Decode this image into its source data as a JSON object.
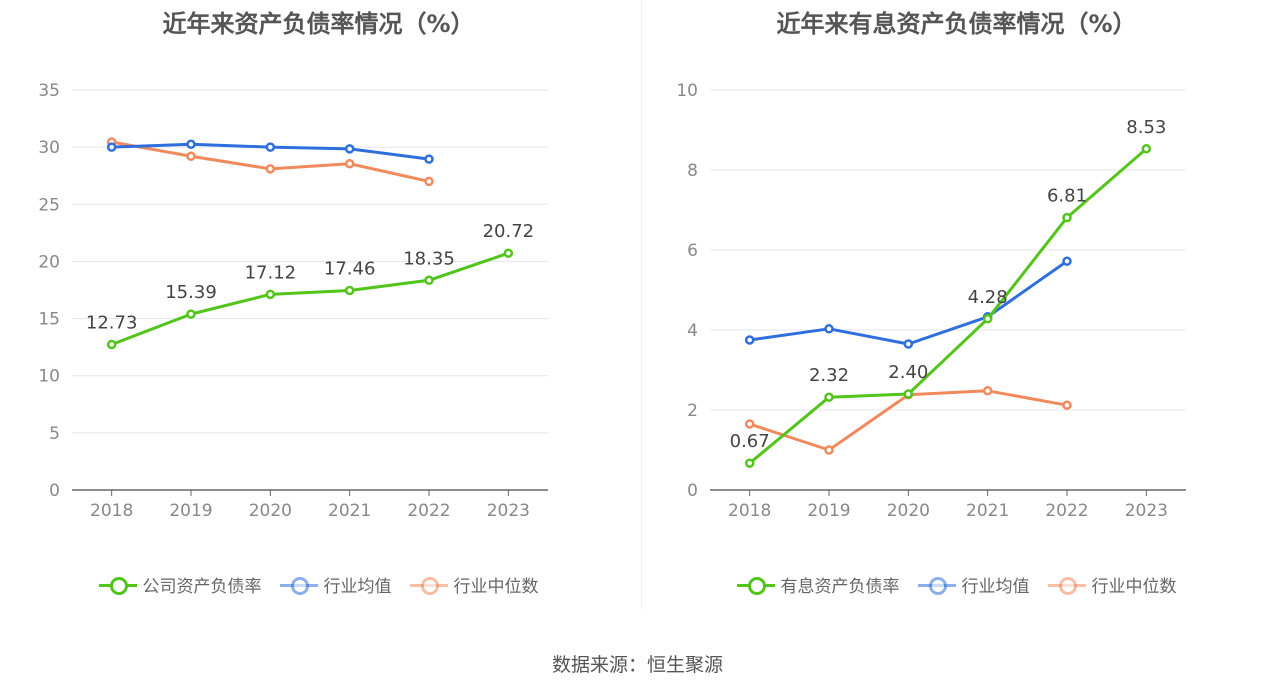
{
  "source_label": "数据来源：恒生聚源",
  "chart_data": [
    {
      "type": "line",
      "title": "近年来资产负债率情况（%）",
      "categories": [
        "2018",
        "2019",
        "2020",
        "2021",
        "2022",
        "2023"
      ],
      "ylim": [
        0,
        35
      ],
      "yticks": [
        0,
        5,
        10,
        15,
        20,
        25,
        30,
        35
      ],
      "grid": true,
      "legend_position": "bottom",
      "series": [
        {
          "name": "公司资产负债率",
          "color": "#52c41a",
          "values": [
            12.73,
            15.39,
            17.12,
            17.46,
            18.35,
            20.72
          ],
          "labels": [
            "12.73",
            "15.39",
            "17.12",
            "17.46",
            "18.35",
            "20.72"
          ]
        },
        {
          "name": "行业均值",
          "color": "#2f6fdd",
          "values": [
            30.0,
            30.25,
            30.0,
            29.85,
            28.95,
            null
          ]
        },
        {
          "name": "行业中位数",
          "color": "#f08a5d",
          "values": [
            30.45,
            29.2,
            28.1,
            28.55,
            27.0,
            null
          ]
        }
      ]
    },
    {
      "type": "line",
      "title": "近年来有息资产负债率情况（%）",
      "categories": [
        "2018",
        "2019",
        "2020",
        "2021",
        "2022",
        "2023"
      ],
      "ylim": [
        0,
        10
      ],
      "yticks": [
        0,
        2,
        4,
        6,
        8,
        10
      ],
      "grid": true,
      "legend_position": "bottom",
      "series": [
        {
          "name": "有息资产负债率",
          "color": "#52c41a",
          "values": [
            0.67,
            2.32,
            2.4,
            4.28,
            6.81,
            8.53
          ],
          "labels": [
            "0.67",
            "2.32",
            "2.40",
            "4.28",
            "6.81",
            "8.53"
          ]
        },
        {
          "name": "行业均值",
          "color": "#2f6fdd",
          "values": [
            3.75,
            4.03,
            3.65,
            4.33,
            5.72,
            null
          ]
        },
        {
          "name": "行业中位数",
          "color": "#f08a5d",
          "values": [
            1.65,
            1.0,
            2.38,
            2.48,
            2.12,
            null
          ]
        }
      ]
    }
  ]
}
